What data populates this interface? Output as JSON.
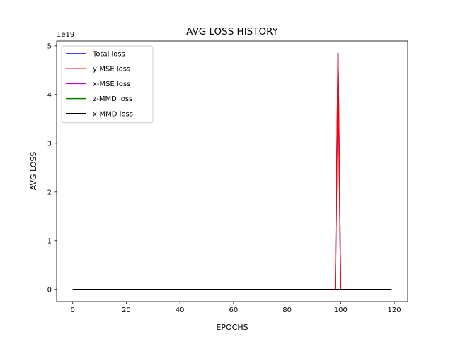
{
  "chart_data": {
    "type": "line",
    "title": "AVG LOSS HISTORY",
    "xlabel": "EPOCHS",
    "ylabel": "AVG LOSS",
    "y_scale_label": "1e19",
    "xlim": [
      -6,
      125
    ],
    "ylim": [
      -2.5e+18,
      5.1e+19
    ],
    "xticks": [
      0,
      20,
      40,
      60,
      80,
      100,
      120
    ],
    "yticks": [
      0,
      1e+19,
      2e+19,
      3e+19,
      4e+19,
      5e+19
    ],
    "ytick_labels": [
      "0",
      "1",
      "2",
      "3",
      "4",
      "5"
    ],
    "grid": false,
    "legend_position": "top-left",
    "x": [
      0,
      98,
      99,
      100,
      119
    ],
    "series": [
      {
        "name": "Total loss",
        "color": "#0000ff",
        "values": [
          0,
          0,
          4.85e+19,
          0,
          0
        ]
      },
      {
        "name": "y-MSE loss",
        "color": "#ff0000",
        "values": [
          0,
          0,
          4.85e+19,
          0,
          0
        ]
      },
      {
        "name": "x-MSE loss",
        "color": "#bf00bf",
        "values": [
          0,
          0,
          0,
          0,
          0
        ]
      },
      {
        "name": "z-MMD loss",
        "color": "#008000",
        "values": [
          0,
          0,
          0,
          0,
          0
        ]
      },
      {
        "name": "x-MMD loss",
        "color": "#000000",
        "values": [
          0,
          0,
          0,
          0,
          0
        ]
      }
    ]
  }
}
